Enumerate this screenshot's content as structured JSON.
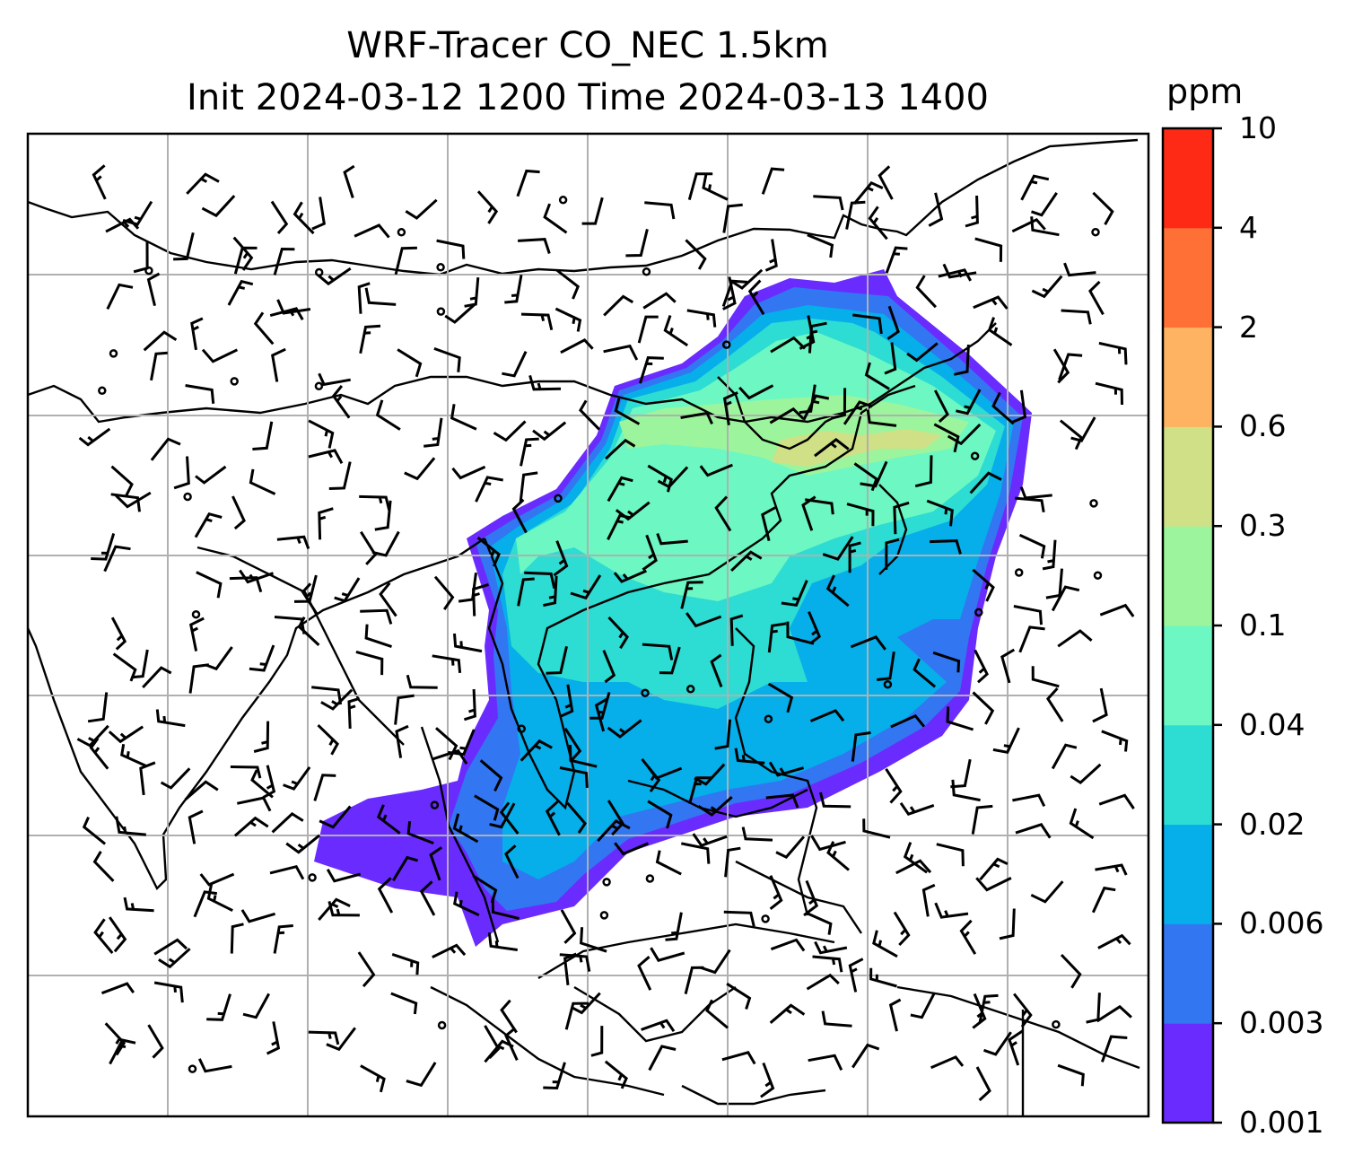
{
  "title": {
    "line1": "WRF-Tracer CO_NEC 1.5km",
    "line2": "Init 2024-03-12 1200 Time 2024-03-13 1400"
  },
  "colorbar": {
    "unit": "ppm",
    "levels": [
      "0.001",
      "0.003",
      "0.006",
      "0.02",
      "0.04",
      "0.1",
      "0.3",
      "0.6",
      "2",
      "4",
      "10"
    ],
    "colors": [
      "#6a2bff",
      "#3276f2",
      "#06aeea",
      "#2ddcd2",
      "#6cf7c3",
      "#9cf59c",
      "#cfe087",
      "#fdb362",
      "#ff7036",
      "#ff2a16"
    ]
  },
  "map": {
    "projection": "lat-lon grid with gridlines",
    "region": "Asia (South Asia, East Asia, Southeast Asia, Maritime Continent)",
    "gridlines": true,
    "field": "CO_NEC tracer concentration (filled contours)",
    "overlays": [
      "coastlines and country borders",
      "wind barbs",
      "calm wind circles"
    ]
  }
}
